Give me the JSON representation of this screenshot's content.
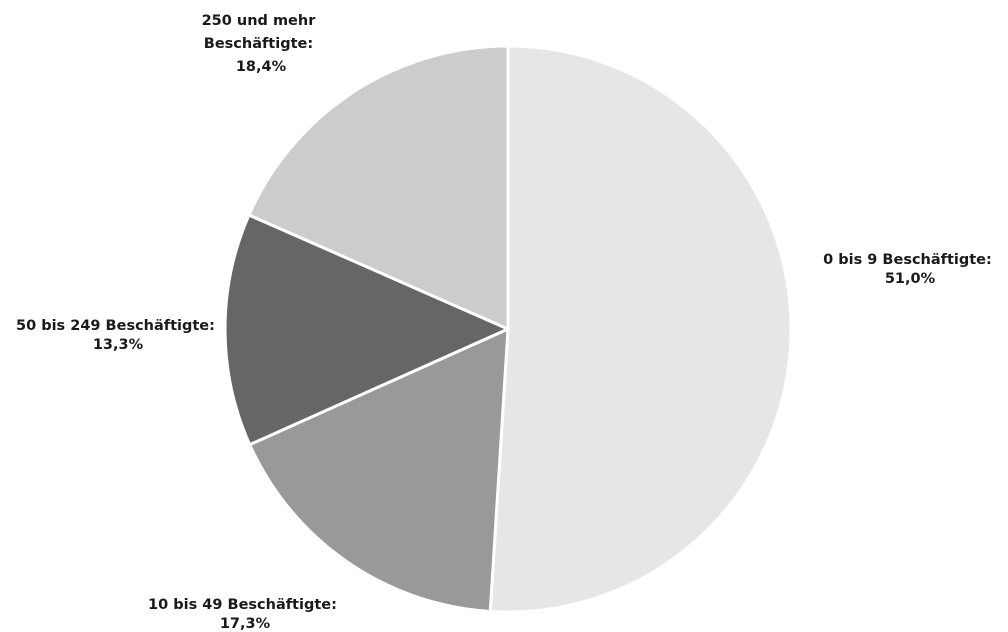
{
  "chart_data": {
    "type": "pie",
    "title": "",
    "start_angle_deg": 0,
    "direction": "clockwise",
    "slices": [
      {
        "label_line1": "0 bis 9 Beschäftigte:",
        "label_line2": "51,0%",
        "value": 51.0,
        "color": "#e6e6e6"
      },
      {
        "label_line1": "10 bis 49 Beschäftigte:",
        "label_line2": "17,3%",
        "value": 17.3,
        "color": "#999999"
      },
      {
        "label_line1": "50 bis 249 Beschäftigte:",
        "label_line2": "13,3%",
        "value": 13.3,
        "color": "#666666"
      },
      {
        "label_line1": "250 und mehr",
        "label_line2": "Beschäftigte:",
        "label_line3": "18,4%",
        "value": 18.4,
        "color": "#cccccc"
      }
    ]
  }
}
